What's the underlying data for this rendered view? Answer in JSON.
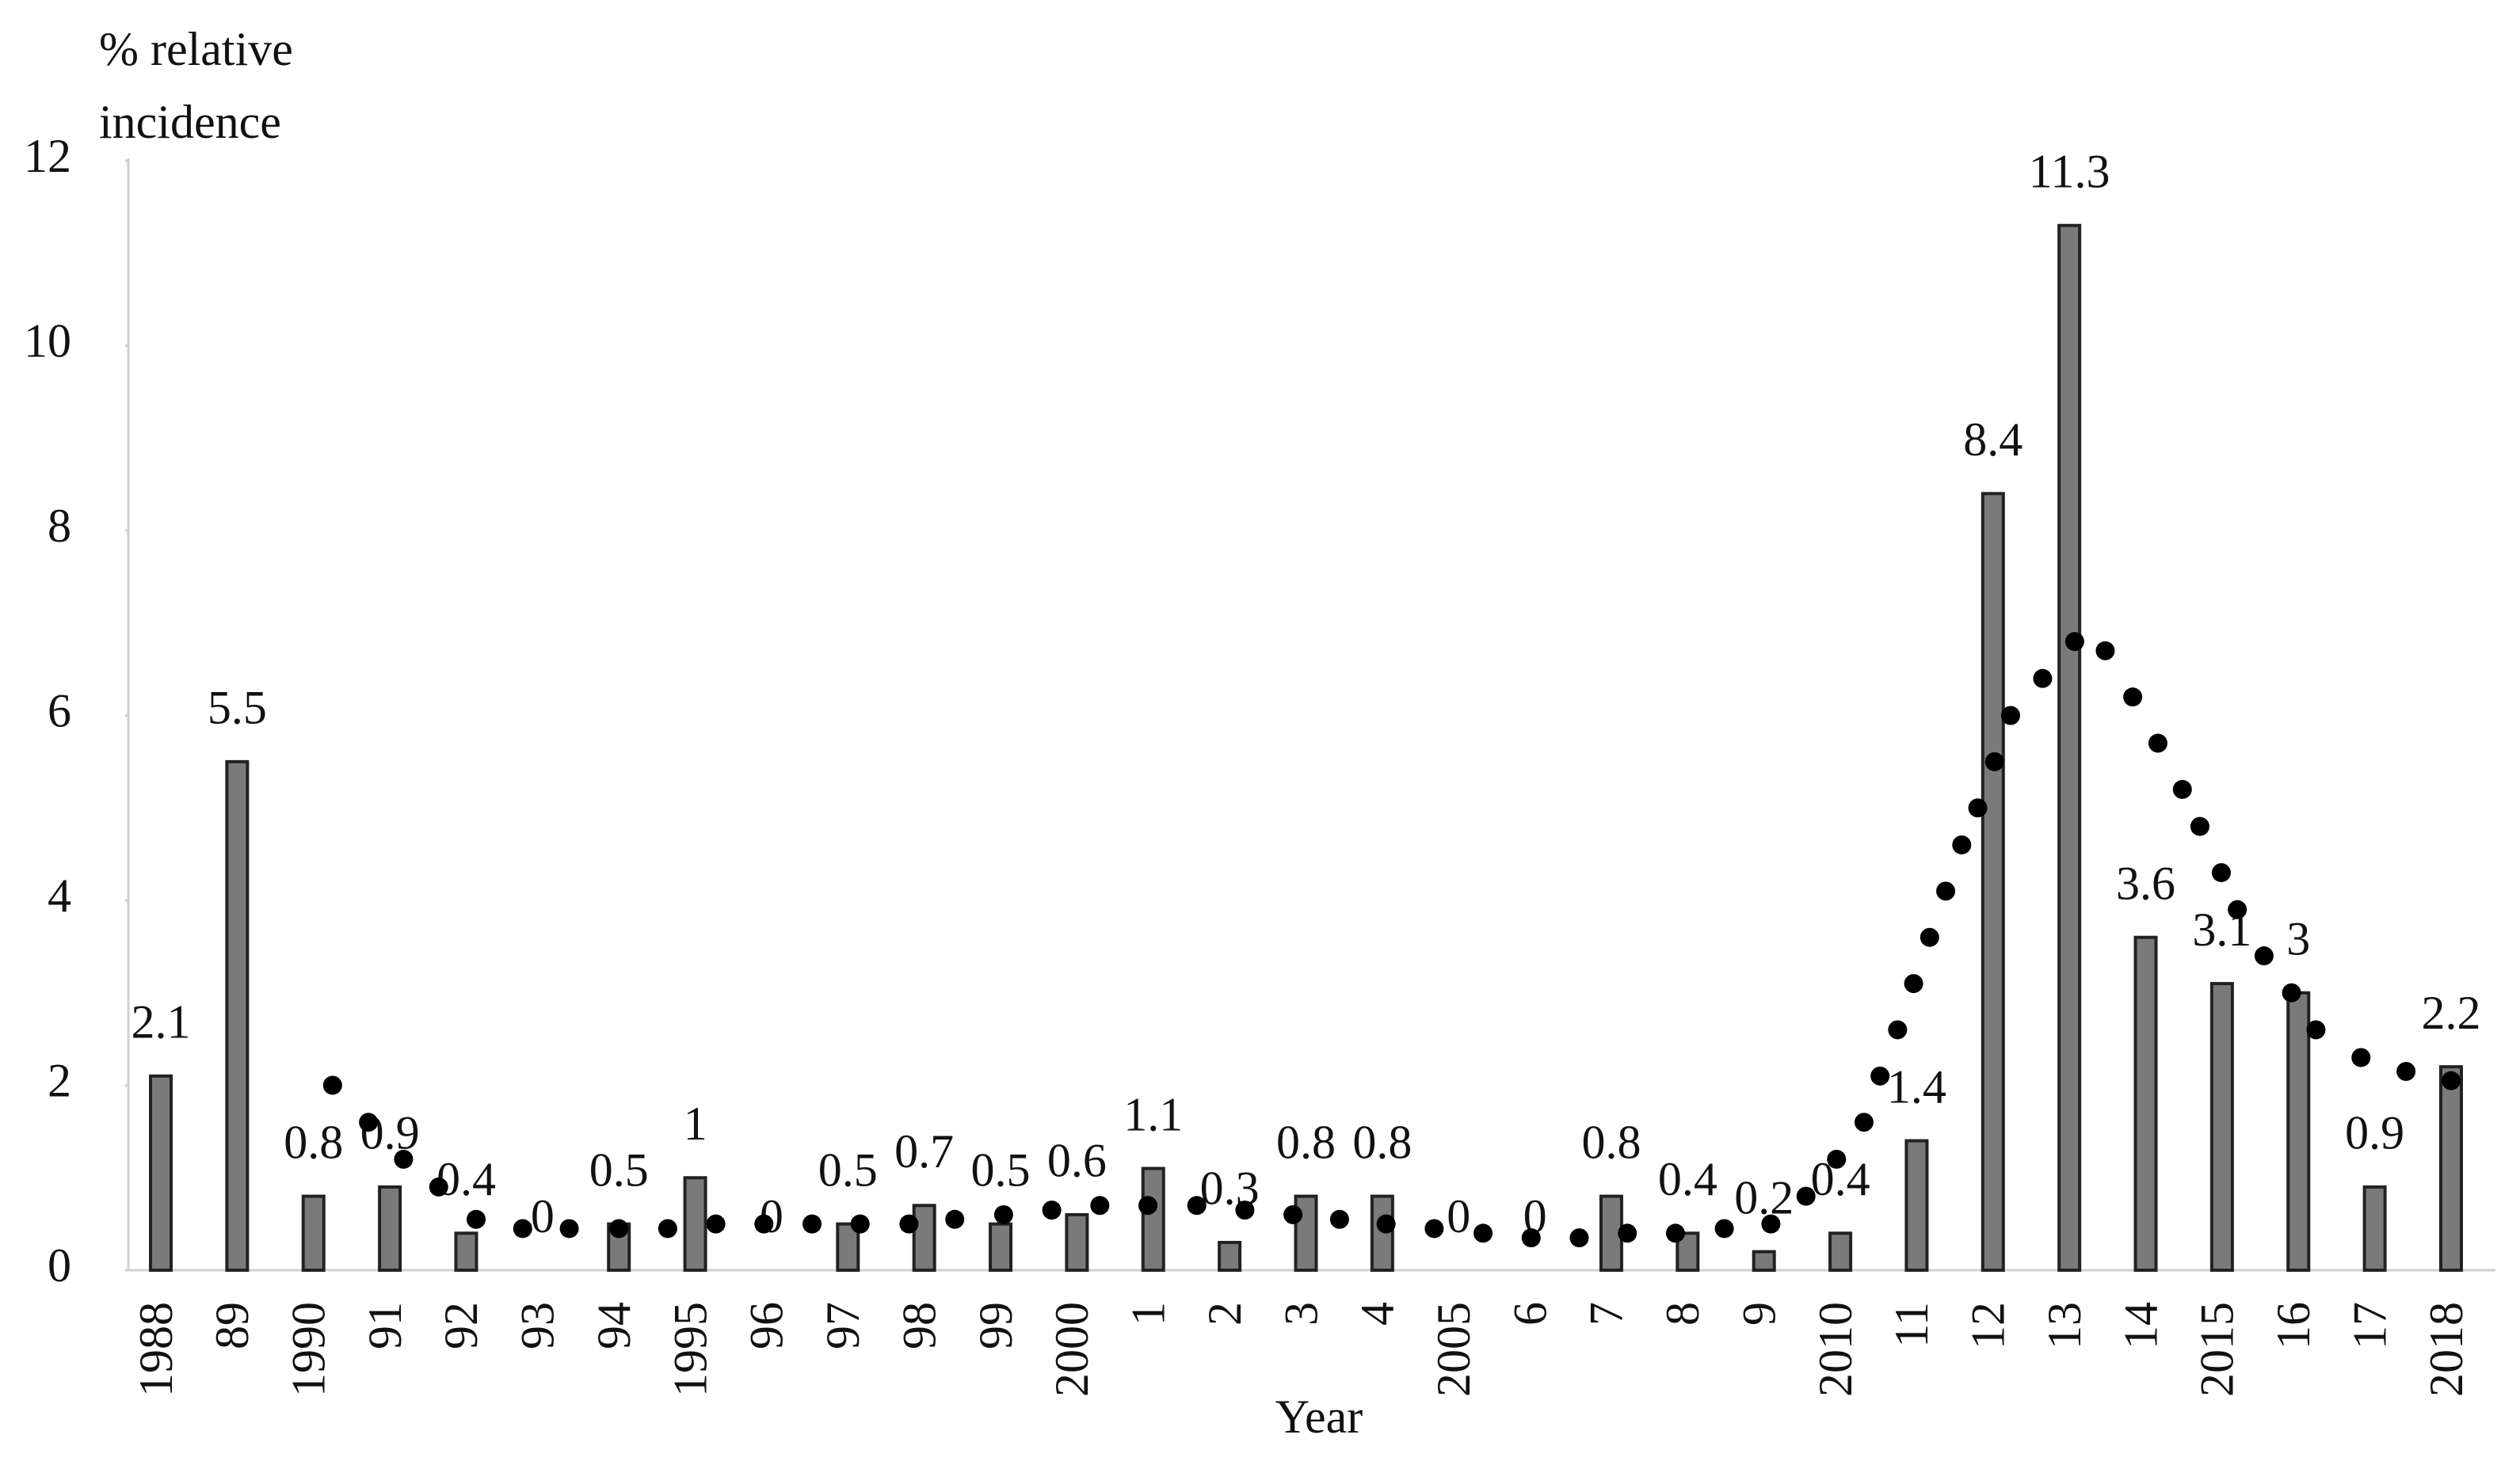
{
  "chart_data": {
    "type": "bar",
    "y_label": [
      "% relative",
      "incidence"
    ],
    "x_label": "Year",
    "categories": [
      "1988",
      "89",
      "1990",
      "91",
      "92",
      "93",
      "94",
      "1995",
      "96",
      "97",
      "98",
      "99",
      "2000",
      "1",
      "2",
      "3",
      "4",
      "2005",
      "6",
      "7",
      "8",
      "9",
      "2010",
      "11",
      "12",
      "13",
      "14",
      "2015",
      "16",
      "17",
      "2018"
    ],
    "values": [
      2.1,
      5.5,
      0.8,
      0.9,
      0.4,
      0,
      0.5,
      1,
      0,
      0.5,
      0.7,
      0.5,
      0.6,
      1.1,
      0.3,
      0.8,
      0.8,
      0,
      0,
      0.8,
      0.4,
      0.2,
      0.4,
      1.4,
      8.4,
      11.3,
      3.6,
      3.1,
      3,
      0.9,
      2.2
    ],
    "color": "#7a7a7a",
    "trend": {
      "type": "scatter",
      "color": "#000000",
      "xlim": [
        1988,
        2018
      ],
      "x": [
        1990.25,
        1990.72,
        1991.18,
        1991.64,
        1992.13,
        1992.74,
        1993.35,
        1994.0,
        1994.64,
        1995.27,
        1995.9,
        1996.53,
        1997.16,
        1997.8,
        1998.4,
        1999.04,
        1999.67,
        2000.3,
        2000.93,
        2001.57,
        2002.2,
        2002.83,
        2003.44,
        2004.05,
        2004.68,
        2005.32,
        2005.95,
        2006.58,
        2007.21,
        2007.84,
        2008.48,
        2009.09,
        2009.55,
        2009.95,
        2010.31,
        2010.52,
        2010.75,
        2010.96,
        2011.17,
        2011.38,
        2011.59,
        2011.8,
        2012.02,
        2012.23,
        2012.65,
        2013.07,
        2013.47,
        2013.83,
        2014.16,
        2014.48,
        2014.71,
        2014.99,
        2015.2,
        2015.55,
        2015.91,
        2016.23,
        2016.82,
        2017.41,
        2018.0
      ],
      "values": [
        2.0,
        1.6,
        1.2,
        0.9,
        0.55,
        0.45,
        0.45,
        0.45,
        0.45,
        0.5,
        0.5,
        0.5,
        0.5,
        0.5,
        0.55,
        0.6,
        0.65,
        0.7,
        0.7,
        0.7,
        0.65,
        0.6,
        0.55,
        0.5,
        0.45,
        0.4,
        0.35,
        0.35,
        0.4,
        0.4,
        0.45,
        0.5,
        0.8,
        1.2,
        1.6,
        2.1,
        2.6,
        3.1,
        3.6,
        4.1,
        4.6,
        5.0,
        5.5,
        6.0,
        6.4,
        6.8,
        6.7,
        6.2,
        5.7,
        5.2,
        4.8,
        4.3,
        3.9,
        3.4,
        3.0,
        2.6,
        2.3,
        2.15,
        2.05
      ]
    },
    "ylim": [
      0,
      12
    ],
    "yticks": [
      0,
      2,
      4,
      6,
      8,
      10,
      12
    ]
  }
}
